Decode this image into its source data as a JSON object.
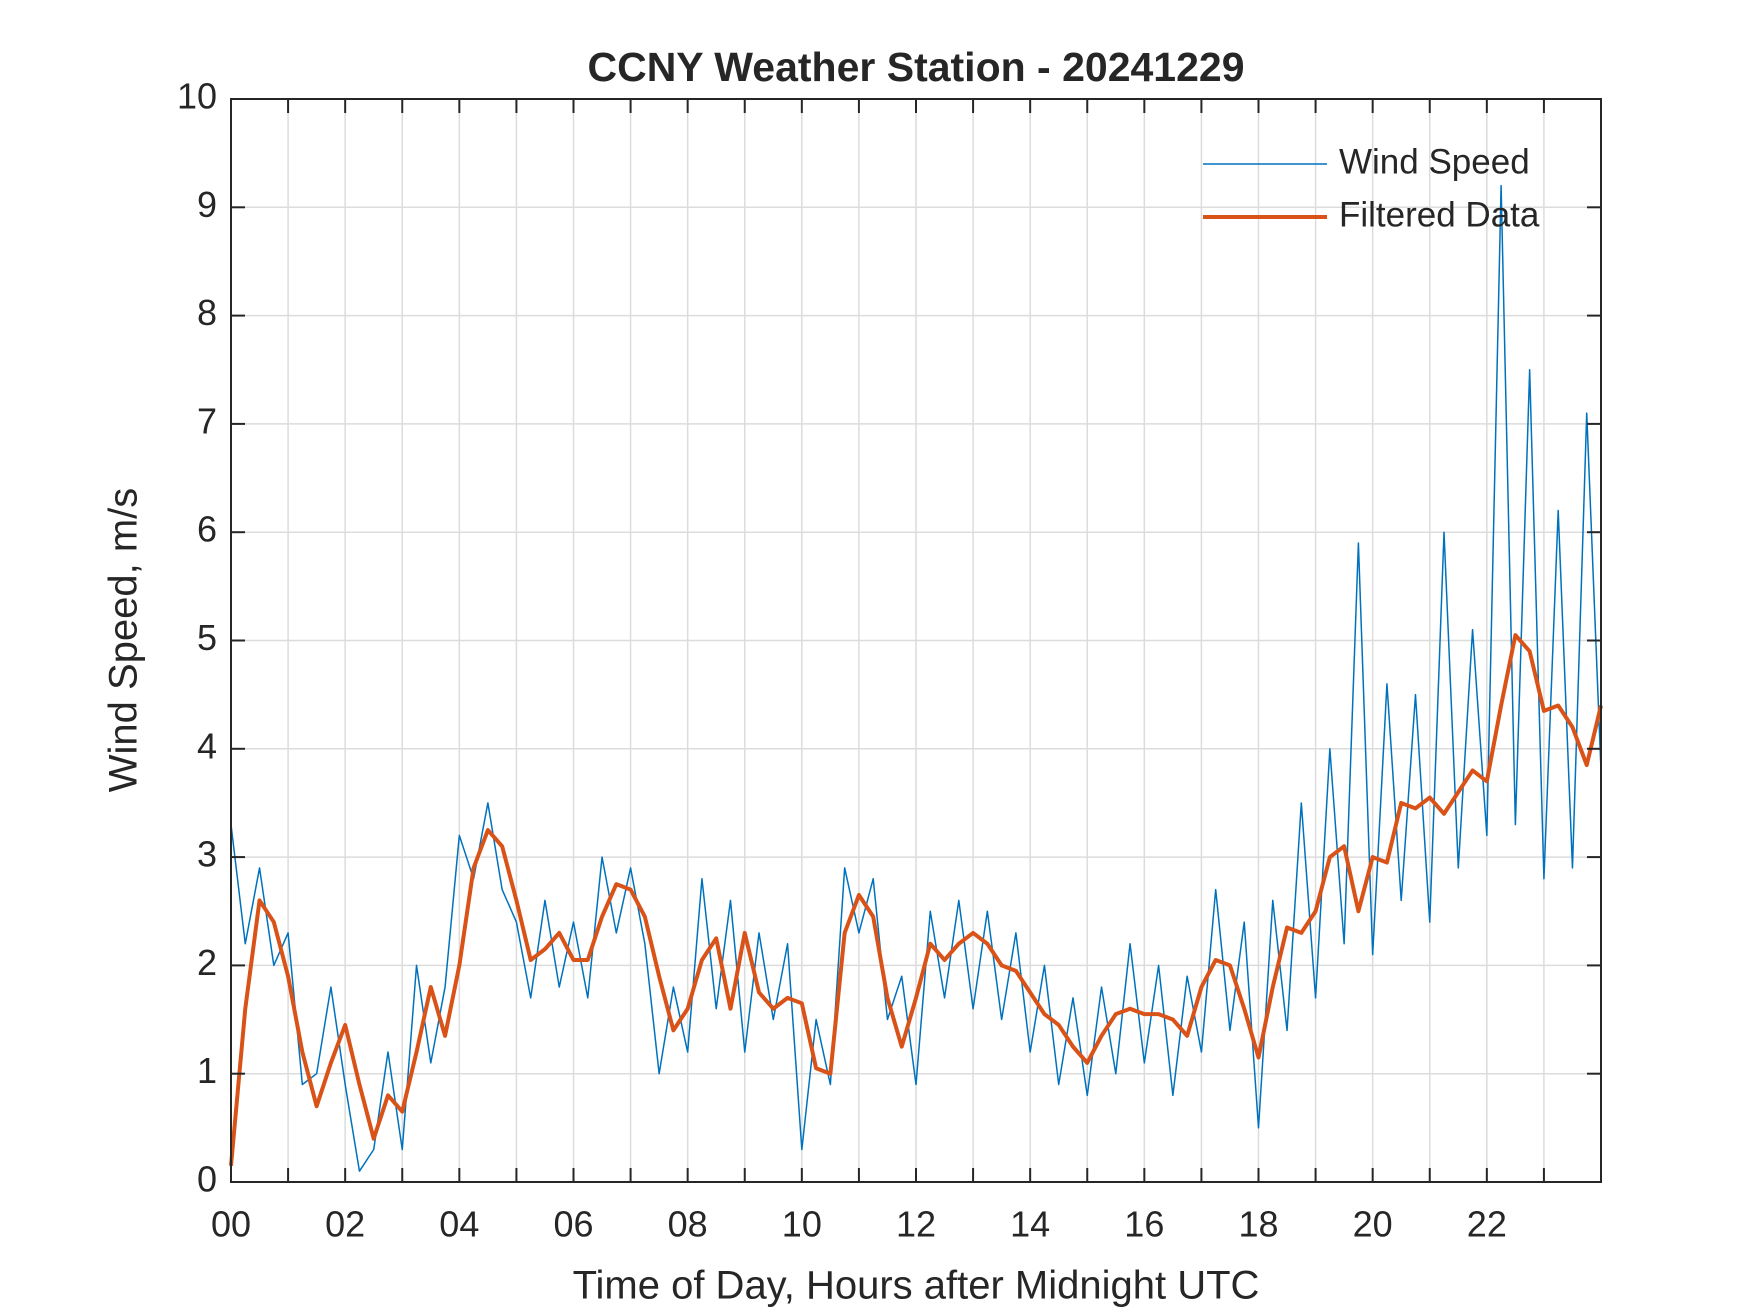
{
  "chart_data": {
    "type": "line",
    "title": "CCNY Weather Station - 20241229",
    "xlabel": "Time of Day, Hours after Midnight UTC",
    "ylabel": "Wind Speed, m/s",
    "x": [
      0,
      0.25,
      0.5,
      0.75,
      1,
      1.25,
      1.5,
      1.75,
      2,
      2.25,
      2.5,
      2.75,
      3,
      3.25,
      3.5,
      3.75,
      4,
      4.25,
      4.5,
      4.75,
      5,
      5.25,
      5.5,
      5.75,
      6,
      6.25,
      6.5,
      6.75,
      7,
      7.25,
      7.5,
      7.75,
      8,
      8.25,
      8.5,
      8.75,
      9,
      9.25,
      9.5,
      9.75,
      10,
      10.25,
      10.5,
      10.75,
      11,
      11.25,
      11.5,
      11.75,
      12,
      12.25,
      12.5,
      12.75,
      13,
      13.25,
      13.5,
      13.75,
      14,
      14.25,
      14.5,
      14.75,
      15,
      15.25,
      15.5,
      15.75,
      16,
      16.25,
      16.5,
      16.75,
      17,
      17.25,
      17.5,
      17.75,
      18,
      18.25,
      18.5,
      18.75,
      19,
      19.25,
      19.5,
      19.75,
      20,
      20.25,
      20.5,
      20.75,
      21,
      21.25,
      21.5,
      21.75,
      22,
      22.25,
      22.5,
      22.75,
      23,
      23.25,
      23.5,
      23.75,
      24
    ],
    "series": [
      {
        "name": "Wind Speed",
        "color": "#0072BD",
        "width": 1.5,
        "values": [
          3.3,
          2.2,
          2.9,
          2.0,
          2.3,
          0.9,
          1.0,
          1.8,
          0.9,
          0.1,
          0.3,
          1.2,
          0.3,
          2.0,
          1.1,
          1.8,
          3.2,
          2.8,
          3.5,
          2.7,
          2.4,
          1.7,
          2.6,
          1.8,
          2.4,
          1.7,
          3.0,
          2.3,
          2.9,
          2.2,
          1.0,
          1.8,
          1.2,
          2.8,
          1.6,
          2.6,
          1.2,
          2.3,
          1.5,
          2.2,
          0.3,
          1.5,
          0.9,
          2.9,
          2.3,
          2.8,
          1.5,
          1.9,
          0.9,
          2.5,
          1.7,
          2.6,
          1.6,
          2.5,
          1.5,
          2.3,
          1.2,
          2.0,
          0.9,
          1.7,
          0.8,
          1.8,
          1.0,
          2.2,
          1.1,
          2.0,
          0.8,
          1.9,
          1.2,
          2.7,
          1.4,
          2.4,
          0.5,
          2.6,
          1.4,
          3.5,
          1.7,
          4.0,
          2.2,
          5.9,
          2.1,
          4.6,
          2.6,
          4.5,
          2.4,
          6.0,
          2.9,
          5.1,
          3.2,
          9.2,
          3.3,
          7.5,
          2.8,
          6.2,
          2.9,
          7.1,
          3.8
        ]
      },
      {
        "name": "Filtered Data",
        "color": "#D95319",
        "width": 4,
        "values": [
          0.15,
          1.6,
          2.6,
          2.4,
          1.9,
          1.2,
          0.7,
          1.1,
          1.45,
          0.9,
          0.4,
          0.8,
          0.65,
          1.2,
          1.8,
          1.35,
          2.0,
          2.9,
          3.25,
          3.1,
          2.6,
          2.05,
          2.15,
          2.3,
          2.05,
          2.05,
          2.45,
          2.75,
          2.7,
          2.45,
          1.9,
          1.4,
          1.6,
          2.05,
          2.25,
          1.6,
          2.3,
          1.75,
          1.6,
          1.7,
          1.65,
          1.05,
          1.0,
          2.3,
          2.65,
          2.45,
          1.7,
          1.25,
          1.7,
          2.2,
          2.05,
          2.2,
          2.3,
          2.2,
          2.0,
          1.95,
          1.75,
          1.55,
          1.45,
          1.25,
          1.1,
          1.35,
          1.55,
          1.6,
          1.55,
          1.55,
          1.5,
          1.35,
          1.8,
          2.05,
          2.0,
          1.6,
          1.15,
          1.8,
          2.35,
          2.3,
          2.5,
          3.0,
          3.1,
          2.5,
          3.0,
          2.95,
          3.5,
          3.45,
          3.55,
          3.4,
          3.6,
          3.8,
          3.7,
          4.4,
          5.05,
          4.9,
          4.35,
          4.4,
          4.2,
          3.85,
          4.4
        ]
      }
    ],
    "xlim": [
      0,
      24
    ],
    "xticks": [
      {
        "value": 0,
        "label": "00"
      },
      {
        "value": 2,
        "label": "02"
      },
      {
        "value": 4,
        "label": "04"
      },
      {
        "value": 6,
        "label": "06"
      },
      {
        "value": 8,
        "label": "08"
      },
      {
        "value": 10,
        "label": "10"
      },
      {
        "value": 12,
        "label": "12"
      },
      {
        "value": 14,
        "label": "14"
      },
      {
        "value": 16,
        "label": "16"
      },
      {
        "value": 18,
        "label": "18"
      },
      {
        "value": 20,
        "label": "20"
      },
      {
        "value": 22,
        "label": "22"
      }
    ],
    "xminorticks": [
      1,
      3,
      5,
      7,
      9,
      11,
      13,
      15,
      17,
      19,
      21,
      23
    ],
    "ylim": [
      0,
      10
    ],
    "yticks": [
      0,
      1,
      2,
      3,
      4,
      5,
      6,
      7,
      8,
      9,
      10
    ],
    "grid": true,
    "legend": "upper right"
  }
}
